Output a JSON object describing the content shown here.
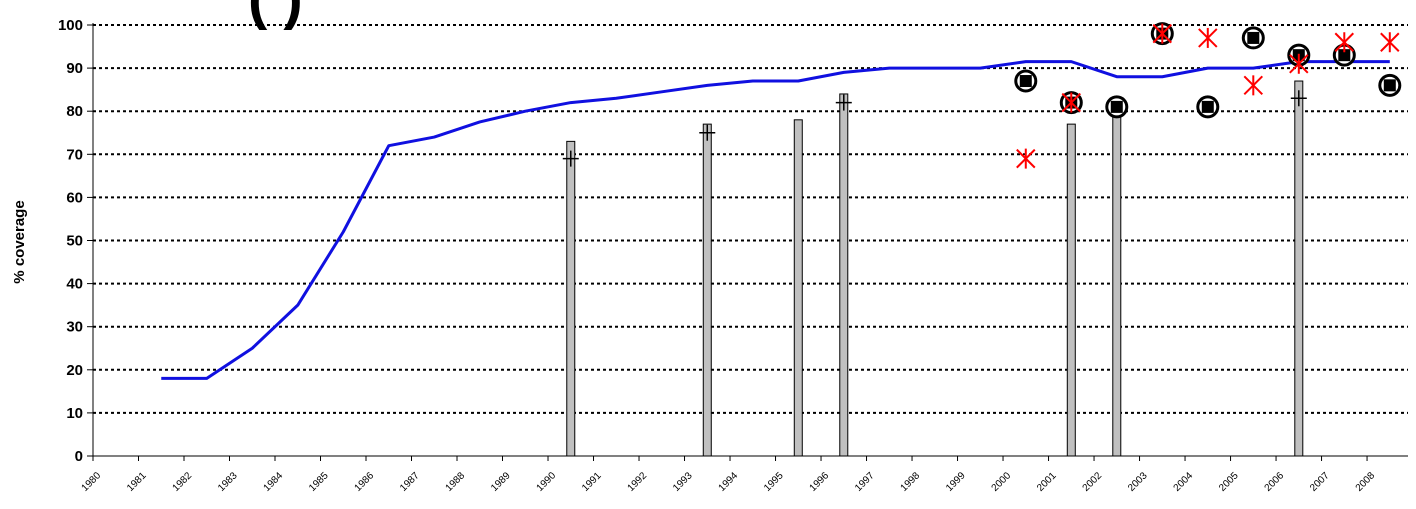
{
  "chart_data": {
    "type": "line",
    "title_fragment": "(          )",
    "ylabel": "% coverage",
    "xlabel": "",
    "ylim": [
      0,
      100
    ],
    "y_ticks": [
      0,
      10,
      20,
      30,
      40,
      50,
      60,
      70,
      80,
      90,
      100
    ],
    "x_tick_labels": [
      "1980",
      "1981",
      "1982",
      "1983",
      "1984",
      "1985",
      "1986",
      "1987",
      "1988",
      "1989",
      "1990",
      "1991",
      "1992",
      "1993",
      "1994",
      "1995",
      "1996",
      "1997",
      "1998",
      "1999",
      "2000",
      "2001",
      "2002",
      "2003",
      "2004",
      "2005",
      "2006",
      "2007",
      "2008"
    ],
    "grid": "horizontal-dotted",
    "colors": {
      "line": "#1010e0",
      "bar": "#c0c0c0",
      "bar_stroke": "#000000",
      "cross_marker": "#ff0000",
      "circle_marker": "#000000",
      "plus_marker": "#000000",
      "grid": "#000000"
    },
    "line_series": {
      "x": [
        1981.5,
        1982.5,
        1983.5,
        1984.5,
        1985.5,
        1986.5,
        1987.5,
        1988.5,
        1989.5,
        1990.5,
        1991.5,
        1992.5,
        1993.5,
        1994.5,
        1995.5,
        1996.5,
        1997.5,
        1998.5,
        1999.5,
        2000.5,
        2001.5,
        2002.5,
        2003.5,
        2004.5,
        2005.5,
        2006.5,
        2007.5,
        2008.5
      ],
      "y": [
        18,
        18,
        25,
        35,
        52,
        72,
        74,
        77.5,
        80,
        82,
        83,
        84.5,
        86,
        87,
        87,
        89,
        90,
        90,
        90,
        91.5,
        91.5,
        88,
        88,
        90,
        90,
        91.5,
        91.5,
        91.5
      ]
    },
    "bar_series": {
      "x": [
        1990.5,
        1993.5,
        1995.5,
        1996.5,
        2001.5,
        2002.5,
        2006.5
      ],
      "values": [
        73,
        77,
        78,
        84,
        77,
        81,
        87
      ]
    },
    "plus_series": {
      "x": [
        1990.5,
        1993.5,
        1996.5,
        2006.5
      ],
      "y": [
        69,
        75,
        82,
        83
      ]
    },
    "circle_series": {
      "x": [
        2000.5,
        2001.5,
        2002.5,
        2003.5,
        2004.5,
        2005.5,
        2006.5,
        2007.5,
        2008.5
      ],
      "y": [
        87,
        82,
        81,
        98,
        81,
        97,
        93,
        93,
        86
      ]
    },
    "cross_series": {
      "x": [
        2000.5,
        2001.5,
        2003.5,
        2004.5,
        2005.5,
        2006.5,
        2007.5,
        2008.5
      ],
      "y": [
        69,
        82,
        98,
        97,
        86,
        91,
        96,
        96
      ]
    }
  }
}
